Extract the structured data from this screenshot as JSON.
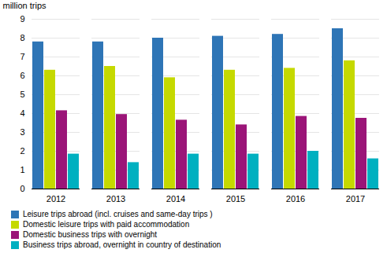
{
  "chart_data": {
    "type": "bar",
    "categories": [
      "2012",
      "2013",
      "2014",
      "2015",
      "2016",
      "2017"
    ],
    "series": [
      {
        "name": "Leisure trips abroad (incl. cruises and same-day trips )",
        "color": "#2E75B6",
        "values": [
          7.8,
          7.8,
          8.0,
          8.1,
          8.2,
          8.5
        ]
      },
      {
        "name": "Domestic leisure trips with paid accommodation",
        "color": "#C5D900",
        "values": [
          6.3,
          6.5,
          5.9,
          6.3,
          6.4,
          6.8
        ]
      },
      {
        "name": "Domestic business trips with overnight",
        "color": "#9B1578",
        "values": [
          4.15,
          3.95,
          3.65,
          3.4,
          3.85,
          3.75
        ]
      },
      {
        "name": "Business trips abroad, overnight in country of destination",
        "color": "#00B0C0",
        "values": [
          1.85,
          1.4,
          1.85,
          1.85,
          2.0,
          1.6
        ]
      }
    ],
    "ylabel": "million trips",
    "ylim": [
      0,
      9
    ],
    "yticks": [
      0,
      1,
      2,
      3,
      4,
      5,
      6,
      7,
      8,
      9
    ],
    "grid": true,
    "legend": "bottom"
  }
}
